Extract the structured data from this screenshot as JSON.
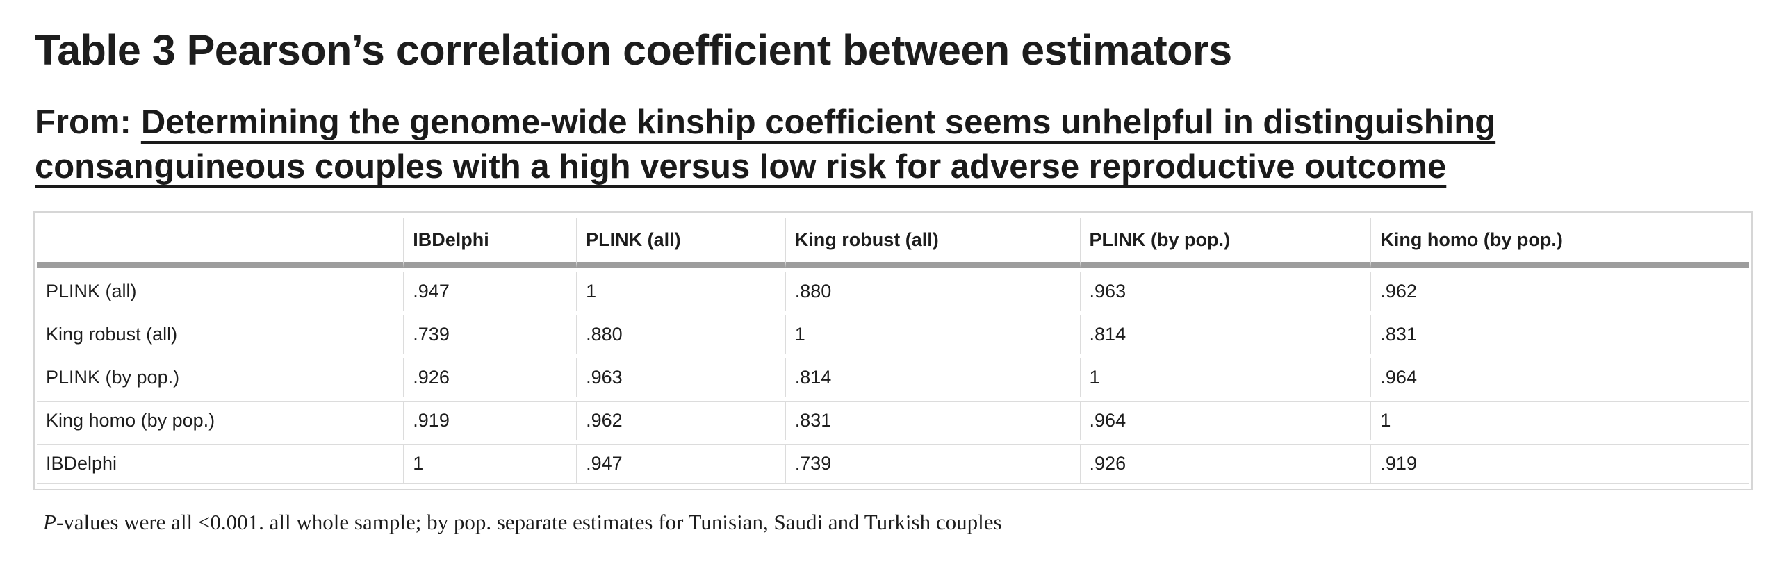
{
  "page": {
    "title": "Table 3 Pearson’s correlation coefficient between estimators",
    "from_label": "From:",
    "article_link": {
      "line1": "Determining the genome-wide kinship coefficient seems unhelpful in distinguishing",
      "line2": "consanguineous couples with a high versus low risk for adverse reproductive outcome"
    },
    "footnote": {
      "lead_italic": "P",
      "rest": "-values were all <0.001. all whole sample; by pop. separate estimates for Tunisian, Saudi and Turkish couples"
    }
  },
  "colors": {
    "text": "#1d1d1d",
    "table_border": "#d6d6d6",
    "header_band": "#9d9d9d"
  },
  "chart_data": {
    "type": "table",
    "title": "Table 3 Pearson's correlation coefficient between estimators",
    "columns": [
      "",
      "IBDelphi",
      "PLINK (all)",
      "King robust (all)",
      "PLINK (by pop.)",
      "King homo (by pop.)"
    ],
    "rows": [
      {
        "label": "PLINK (all)",
        "values": [
          ".947",
          "1",
          ".880",
          ".963",
          ".962"
        ]
      },
      {
        "label": "King robust (all)",
        "values": [
          ".739",
          ".880",
          "1",
          ".814",
          ".831"
        ]
      },
      {
        "label": "PLINK (by pop.)",
        "values": [
          ".926",
          ".963",
          ".814",
          "1",
          ".964"
        ]
      },
      {
        "label": "King homo (by pop.)",
        "values": [
          ".919",
          ".962",
          ".831",
          ".964",
          "1"
        ]
      },
      {
        "label": "IBDelphi",
        "values": [
          "1",
          ".947",
          ".739",
          ".926",
          ".919"
        ]
      }
    ],
    "footnote": "P-values were all <0.001. all whole sample; by pop. separate estimates for Tunisian, Saudi and Turkish couples"
  }
}
